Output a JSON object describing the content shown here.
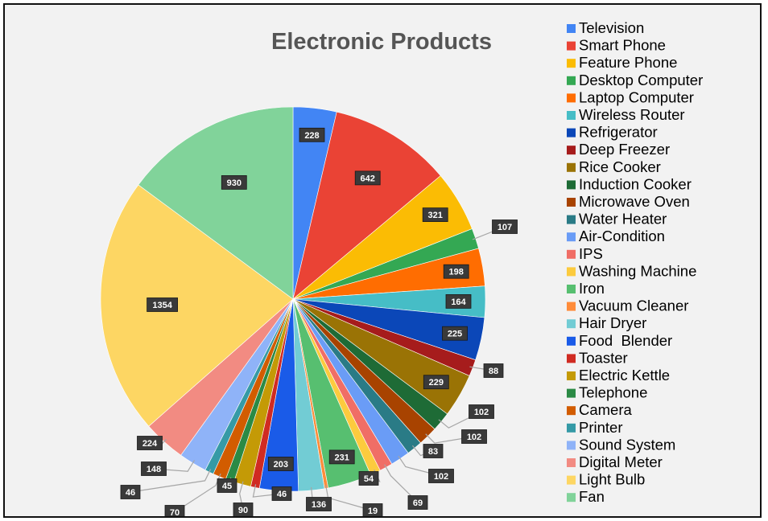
{
  "chart_data": {
    "type": "pie",
    "title": "Electronic Products",
    "legend_position": "right",
    "slices": [
      {
        "name": "Television",
        "value": 228,
        "color": "#4285F4"
      },
      {
        "name": "Smart Phone",
        "value": 642,
        "color": "#EA4335"
      },
      {
        "name": "Feature Phone",
        "value": 321,
        "color": "#FBBC04"
      },
      {
        "name": "Desktop Computer",
        "value": 107,
        "color": "#34A853"
      },
      {
        "name": "Laptop Computer",
        "value": 198,
        "color": "#FF6D01"
      },
      {
        "name": "Wireless Router",
        "value": 164,
        "color": "#46BDC6"
      },
      {
        "name": "Refrigerator",
        "value": 225,
        "color": "#0B47B8"
      },
      {
        "name": "Deep Freezer",
        "value": 88,
        "color": "#A61C1C"
      },
      {
        "name": "Rice Cooker",
        "value": 229,
        "color": "#9A7305"
      },
      {
        "name": "Induction Cooker",
        "value": 102,
        "color": "#1E6B36"
      },
      {
        "name": "Microwave Oven",
        "value": 102,
        "color": "#A84300"
      },
      {
        "name": "Water Heater",
        "value": 83,
        "color": "#2A7B86"
      },
      {
        "name": "Air-Condition",
        "value": 102,
        "color": "#6A9CF6"
      },
      {
        "name": "IPS",
        "value": 69,
        "color": "#F06E66"
      },
      {
        "name": "Washing Machine",
        "value": 54,
        "color": "#FCCB3E"
      },
      {
        "name": "Iron",
        "value": 231,
        "color": "#57BF70"
      },
      {
        "name": "Vacuum Cleaner",
        "value": 19,
        "color": "#FF8C3A"
      },
      {
        "name": "Hair Dryer",
        "value": 136,
        "color": "#72CCD4"
      },
      {
        "name": "Food  Blender",
        "value": 203,
        "color": "#1A5BE8"
      },
      {
        "name": "Toaster",
        "value": 46,
        "color": "#D02B22"
      },
      {
        "name": "Electric Kettle",
        "value": 90,
        "color": "#C49A06"
      },
      {
        "name": "Telephone",
        "value": 45,
        "color": "#2B8A45"
      },
      {
        "name": "Camera",
        "value": 70,
        "color": "#D25C00"
      },
      {
        "name": "Printer",
        "value": 46,
        "color": "#359AA6"
      },
      {
        "name": "Sound System",
        "value": 148,
        "color": "#8FB3F8"
      },
      {
        "name": "Digital Meter",
        "value": 224,
        "color": "#F28B82"
      },
      {
        "name": "Light Bulb",
        "value": 1354,
        "color": "#FDD663"
      },
      {
        "name": "Fan",
        "value": 930,
        "color": "#81D39A"
      }
    ]
  }
}
